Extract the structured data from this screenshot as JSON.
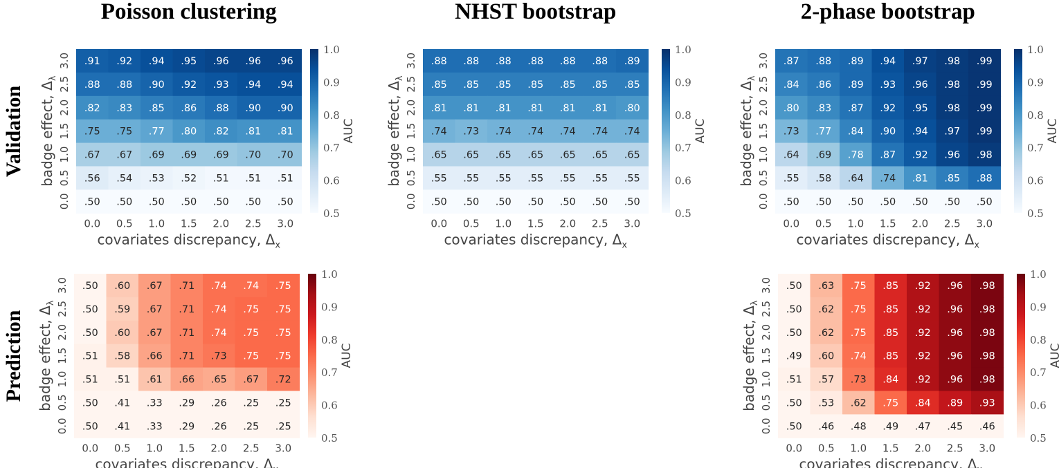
{
  "chart_data": [
    {
      "type": "heatmap",
      "title": "Poisson clustering",
      "row_title": "Validation",
      "xlabel": "covariates discrepancy, Δx",
      "ylabel": "badge effect, Δλ",
      "x_ticks": [
        "0.0",
        "0.5",
        "1.0",
        "1.5",
        "2.0",
        "2.5",
        "3.0"
      ],
      "y_ticks": [
        "3.0",
        "2.5",
        "2.0",
        "1.5",
        "1.0",
        "0.5",
        "0.0"
      ],
      "values": [
        [
          0.91,
          0.92,
          0.94,
          0.95,
          0.96,
          0.96,
          0.96
        ],
        [
          0.88,
          0.88,
          0.9,
          0.92,
          0.93,
          0.94,
          0.94
        ],
        [
          0.82,
          0.83,
          0.85,
          0.86,
          0.88,
          0.9,
          0.9
        ],
        [
          0.75,
          0.75,
          0.77,
          0.8,
          0.82,
          0.81,
          0.81
        ],
        [
          0.67,
          0.67,
          0.69,
          0.69,
          0.69,
          0.7,
          0.7
        ],
        [
          0.56,
          0.54,
          0.53,
          0.52,
          0.51,
          0.51,
          0.51
        ],
        [
          0.5,
          0.5,
          0.5,
          0.5,
          0.5,
          0.5,
          0.5
        ]
      ],
      "labels": [
        [
          ".91",
          ".92",
          ".94",
          ".95",
          ".96",
          ".96",
          ".96"
        ],
        [
          ".88",
          ".88",
          ".90",
          ".92",
          ".93",
          ".94",
          ".94"
        ],
        [
          ".82",
          ".83",
          ".85",
          ".86",
          ".88",
          ".90",
          ".90"
        ],
        [
          ".75",
          ".75",
          ".77",
          ".80",
          ".82",
          ".81",
          ".81"
        ],
        [
          ".67",
          ".67",
          ".69",
          ".69",
          ".69",
          ".70",
          ".70"
        ],
        [
          ".56",
          ".54",
          ".53",
          ".52",
          ".51",
          ".51",
          ".51"
        ],
        [
          ".50",
          ".50",
          ".50",
          ".50",
          ".50",
          ".50",
          ".50"
        ]
      ],
      "colormap": "Blues",
      "vmin": 0.5,
      "vmax": 1.0,
      "colorbar_label": "AUC",
      "colorbar_ticks": [
        "1.0",
        "0.9",
        "0.8",
        "0.7",
        "0.6",
        "0.5"
      ]
    },
    {
      "type": "heatmap",
      "title": "NHST bootstrap",
      "row_title": "Validation",
      "xlabel": "covariates discrepancy, Δx",
      "ylabel": "badge effect, Δλ",
      "x_ticks": [
        "0.0",
        "0.5",
        "1.0",
        "1.5",
        "2.0",
        "2.5",
        "3.0"
      ],
      "y_ticks": [
        "3.0",
        "2.5",
        "2.0",
        "1.5",
        "1.0",
        "0.5",
        "0.0"
      ],
      "values": [
        [
          0.88,
          0.88,
          0.88,
          0.88,
          0.88,
          0.88,
          0.89
        ],
        [
          0.85,
          0.85,
          0.85,
          0.85,
          0.85,
          0.85,
          0.85
        ],
        [
          0.81,
          0.81,
          0.81,
          0.81,
          0.81,
          0.81,
          0.8
        ],
        [
          0.74,
          0.73,
          0.74,
          0.74,
          0.74,
          0.74,
          0.74
        ],
        [
          0.65,
          0.65,
          0.65,
          0.65,
          0.65,
          0.65,
          0.65
        ],
        [
          0.55,
          0.55,
          0.55,
          0.55,
          0.55,
          0.55,
          0.55
        ],
        [
          0.5,
          0.5,
          0.5,
          0.5,
          0.5,
          0.5,
          0.5
        ]
      ],
      "labels": [
        [
          ".88",
          ".88",
          ".88",
          ".88",
          ".88",
          ".88",
          ".89"
        ],
        [
          ".85",
          ".85",
          ".85",
          ".85",
          ".85",
          ".85",
          ".85"
        ],
        [
          ".81",
          ".81",
          ".81",
          ".81",
          ".81",
          ".81",
          ".80"
        ],
        [
          ".74",
          ".73",
          ".74",
          ".74",
          ".74",
          ".74",
          ".74"
        ],
        [
          ".65",
          ".65",
          ".65",
          ".65",
          ".65",
          ".65",
          ".65"
        ],
        [
          ".55",
          ".55",
          ".55",
          ".55",
          ".55",
          ".55",
          ".55"
        ],
        [
          ".50",
          ".50",
          ".50",
          ".50",
          ".50",
          ".50",
          ".50"
        ]
      ],
      "colormap": "Blues",
      "vmin": 0.5,
      "vmax": 1.0,
      "colorbar_label": "AUC",
      "colorbar_ticks": [
        "1.0",
        "0.9",
        "0.8",
        "0.7",
        "0.6",
        "0.5"
      ]
    },
    {
      "type": "heatmap",
      "title": "2-phase bootstrap",
      "row_title": "Validation",
      "xlabel": "covariates discrepancy, Δx",
      "ylabel": "badge effect, Δλ",
      "x_ticks": [
        "0.0",
        "0.5",
        "1.0",
        "1.5",
        "2.0",
        "2.5",
        "3.0"
      ],
      "y_ticks": [
        "3.0",
        "2.5",
        "2.0",
        "1.5",
        "1.0",
        "0.5",
        "0.0"
      ],
      "values": [
        [
          0.87,
          0.88,
          0.89,
          0.94,
          0.97,
          0.98,
          0.99
        ],
        [
          0.84,
          0.86,
          0.89,
          0.93,
          0.96,
          0.98,
          0.99
        ],
        [
          0.8,
          0.83,
          0.87,
          0.92,
          0.95,
          0.98,
          0.99
        ],
        [
          0.73,
          0.77,
          0.84,
          0.9,
          0.94,
          0.97,
          0.99
        ],
        [
          0.64,
          0.69,
          0.78,
          0.87,
          0.92,
          0.96,
          0.98
        ],
        [
          0.55,
          0.58,
          0.64,
          0.74,
          0.81,
          0.85,
          0.88
        ],
        [
          0.5,
          0.5,
          0.5,
          0.5,
          0.5,
          0.5,
          0.5
        ]
      ],
      "labels": [
        [
          ".87",
          ".88",
          ".89",
          ".94",
          ".97",
          ".98",
          ".99"
        ],
        [
          ".84",
          ".86",
          ".89",
          ".93",
          ".96",
          ".98",
          ".99"
        ],
        [
          ".80",
          ".83",
          ".87",
          ".92",
          ".95",
          ".98",
          ".99"
        ],
        [
          ".73",
          ".77",
          ".84",
          ".90",
          ".94",
          ".97",
          ".99"
        ],
        [
          ".64",
          ".69",
          ".78",
          ".87",
          ".92",
          ".96",
          ".98"
        ],
        [
          ".55",
          ".58",
          ".64",
          ".74",
          ".81",
          ".85",
          ".88"
        ],
        [
          ".50",
          ".50",
          ".50",
          ".50",
          ".50",
          ".50",
          ".50"
        ]
      ],
      "colormap": "Blues",
      "vmin": 0.5,
      "vmax": 1.0,
      "colorbar_label": "AUC",
      "colorbar_ticks": [
        "1.0",
        "0.9",
        "0.8",
        "0.7",
        "0.6",
        "0.5"
      ]
    },
    {
      "type": "heatmap",
      "title": "Poisson clustering",
      "row_title": "Prediction",
      "xlabel": "covariates discrepancy, Δx",
      "ylabel": "badge effect, Δλ",
      "x_ticks": [
        "0.0",
        "0.5",
        "1.0",
        "1.5",
        "2.0",
        "2.5",
        "3.0"
      ],
      "y_ticks": [
        "3.0",
        "2.5",
        "2.0",
        "1.5",
        "1.0",
        "0.5",
        "0.0"
      ],
      "values": [
        [
          0.5,
          0.6,
          0.67,
          0.71,
          0.74,
          0.74,
          0.75
        ],
        [
          0.5,
          0.59,
          0.67,
          0.71,
          0.74,
          0.75,
          0.75
        ],
        [
          0.5,
          0.6,
          0.67,
          0.71,
          0.74,
          0.75,
          0.75
        ],
        [
          0.51,
          0.58,
          0.66,
          0.71,
          0.73,
          0.75,
          0.75
        ],
        [
          0.51,
          0.51,
          0.61,
          0.66,
          0.65,
          0.67,
          0.72
        ],
        [
          0.5,
          0.41,
          0.33,
          0.29,
          0.26,
          0.25,
          0.25
        ],
        [
          0.5,
          0.41,
          0.33,
          0.29,
          0.26,
          0.25,
          0.25
        ]
      ],
      "labels": [
        [
          ".50",
          ".60",
          ".67",
          ".71",
          ".74",
          ".74",
          ".75"
        ],
        [
          ".50",
          ".59",
          ".67",
          ".71",
          ".74",
          ".75",
          ".75"
        ],
        [
          ".50",
          ".60",
          ".67",
          ".71",
          ".74",
          ".75",
          ".75"
        ],
        [
          ".51",
          ".58",
          ".66",
          ".71",
          ".73",
          ".75",
          ".75"
        ],
        [
          ".51",
          ".51",
          ".61",
          ".66",
          ".65",
          ".67",
          ".72"
        ],
        [
          ".50",
          ".41",
          ".33",
          ".29",
          ".26",
          ".25",
          ".25"
        ],
        [
          ".50",
          ".41",
          ".33",
          ".29",
          ".26",
          ".25",
          ".25"
        ]
      ],
      "colormap": "Reds",
      "vmin": 0.5,
      "vmax": 1.0,
      "colorbar_label": "AUC",
      "colorbar_ticks": [
        "1.0",
        "0.9",
        "0.8",
        "0.7",
        "0.6",
        "0.5"
      ]
    },
    {
      "type": "heatmap",
      "title": "2-phase bootstrap",
      "row_title": "Prediction",
      "xlabel": "covariates discrepancy, Δx",
      "ylabel": "badge effect, Δλ",
      "x_ticks": [
        "0.0",
        "0.5",
        "1.0",
        "1.5",
        "2.0",
        "2.5",
        "3.0"
      ],
      "y_ticks": [
        "3.0",
        "2.5",
        "2.0",
        "1.5",
        "1.0",
        "0.5",
        "0.0"
      ],
      "values": [
        [
          0.5,
          0.63,
          0.75,
          0.85,
          0.92,
          0.96,
          0.98
        ],
        [
          0.5,
          0.62,
          0.75,
          0.85,
          0.92,
          0.96,
          0.98
        ],
        [
          0.5,
          0.62,
          0.75,
          0.85,
          0.92,
          0.96,
          0.98
        ],
        [
          0.49,
          0.6,
          0.74,
          0.85,
          0.92,
          0.96,
          0.98
        ],
        [
          0.51,
          0.57,
          0.73,
          0.84,
          0.92,
          0.96,
          0.98
        ],
        [
          0.5,
          0.53,
          0.62,
          0.75,
          0.84,
          0.89,
          0.93
        ],
        [
          0.5,
          0.46,
          0.48,
          0.49,
          0.47,
          0.45,
          0.46
        ]
      ],
      "labels": [
        [
          ".50",
          ".63",
          ".75",
          ".85",
          ".92",
          ".96",
          ".98"
        ],
        [
          ".50",
          ".62",
          ".75",
          ".85",
          ".92",
          ".96",
          ".98"
        ],
        [
          ".50",
          ".62",
          ".75",
          ".85",
          ".92",
          ".96",
          ".98"
        ],
        [
          ".49",
          ".60",
          ".74",
          ".85",
          ".92",
          ".96",
          ".98"
        ],
        [
          ".51",
          ".57",
          ".73",
          ".84",
          ".92",
          ".96",
          ".98"
        ],
        [
          ".50",
          ".53",
          ".62",
          ".75",
          ".84",
          ".89",
          ".93"
        ],
        [
          ".50",
          ".46",
          ".48",
          ".49",
          ".47",
          ".45",
          ".46"
        ]
      ],
      "colormap": "Reds",
      "vmin": 0.5,
      "vmax": 1.0,
      "colorbar_label": "AUC",
      "colorbar_ticks": [
        "1.0",
        "0.9",
        "0.8",
        "0.7",
        "0.6",
        "0.5"
      ]
    }
  ]
}
